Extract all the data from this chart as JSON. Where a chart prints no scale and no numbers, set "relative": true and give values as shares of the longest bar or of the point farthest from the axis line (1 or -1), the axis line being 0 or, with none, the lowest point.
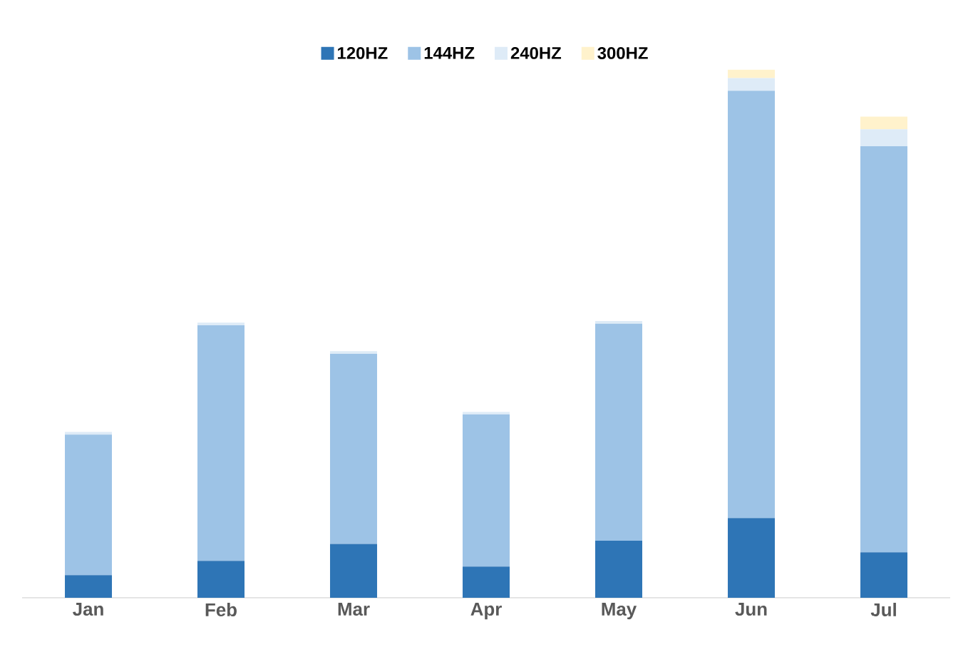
{
  "chart_data": {
    "type": "bar",
    "stacked": true,
    "relative": true,
    "legend": "top",
    "categories": [
      "Jan",
      "Feb",
      "Mar",
      "Apr",
      "May",
      "Jun",
      "Jul"
    ],
    "series": [
      {
        "name": "120HZ",
        "color": "#2e75b6",
        "values": [
          0.043,
          0.07,
          0.102,
          0.059,
          0.108,
          0.151,
          0.086
        ]
      },
      {
        "name": "144HZ",
        "color": "#9dc3e6",
        "values": [
          0.266,
          0.446,
          0.36,
          0.288,
          0.411,
          0.809,
          0.769
        ]
      },
      {
        "name": "240HZ",
        "color": "#deebf7",
        "values": [
          0.005,
          0.005,
          0.005,
          0.005,
          0.005,
          0.024,
          0.032
        ]
      },
      {
        "name": "300HZ",
        "color": "#fff2cc",
        "values": [
          0,
          0,
          0,
          0,
          0,
          0.016,
          0.024
        ]
      }
    ]
  }
}
